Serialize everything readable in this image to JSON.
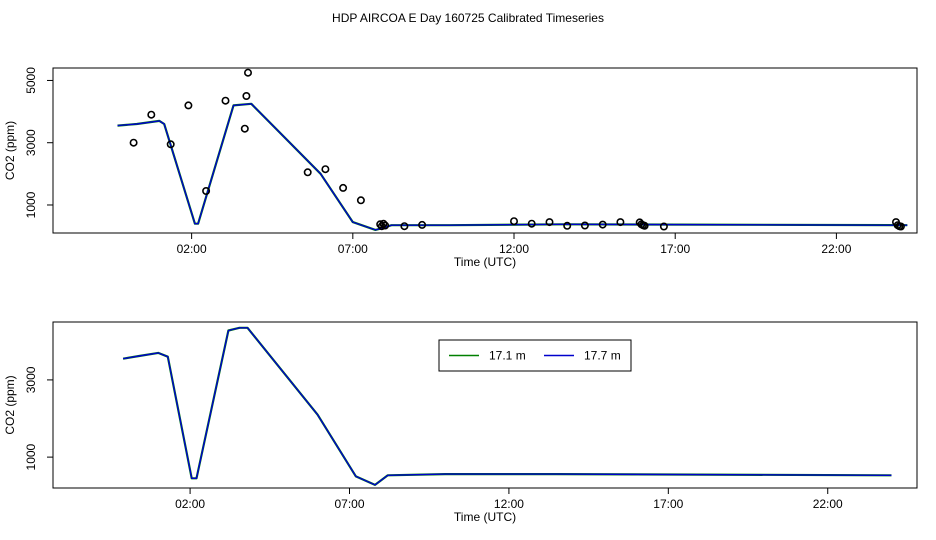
{
  "title": "HDP AIRCOA E  Day 160725  Calibrated Timeseries",
  "chart_data": [
    {
      "type": "line",
      "xlabel": "Time (UTC)",
      "ylabel": "CO2 (ppm)",
      "xlim": [
        -2.3,
        24.5
      ],
      "ylim": [
        100,
        5400
      ],
      "xticks": [
        2,
        7,
        12,
        17,
        22
      ],
      "xtick_labels": [
        "02:00",
        "07:00",
        "12:00",
        "17:00",
        "22:00"
      ],
      "yticks": [
        1000,
        3000,
        5000
      ],
      "ytick_labels": [
        "1000",
        "3000",
        "5000"
      ],
      "grid": false,
      "series": [
        {
          "color": "#008000",
          "x": [
            -0.3,
            0.3,
            1.0,
            1.15,
            2.1,
            2.2,
            3.3,
            3.85,
            6.0,
            7.0,
            7.7,
            7.9,
            8.2,
            10.0,
            13.5,
            24.2
          ],
          "y": [
            3550,
            3600,
            3700,
            3600,
            400,
            400,
            4200,
            4250,
            2000,
            450,
            200,
            250,
            350,
            350,
            380,
            350
          ]
        },
        {
          "color": "#0000cc",
          "x": [
            -0.3,
            0.3,
            1.0,
            1.15,
            2.1,
            2.2,
            3.3,
            3.85,
            6.0,
            7.0,
            7.7,
            7.9,
            8.2,
            10.0,
            13.5,
            24.2
          ],
          "y": [
            3550,
            3600,
            3700,
            3600,
            400,
            400,
            4200,
            4250,
            2000,
            450,
            200,
            250,
            350,
            350,
            380,
            350
          ]
        }
      ],
      "points": {
        "x": [
          0.2,
          0.75,
          1.35,
          1.9,
          2.45,
          3.05,
          3.65,
          3.7,
          3.75,
          5.6,
          6.15,
          6.7,
          7.25,
          7.85,
          7.9,
          7.95,
          8.0,
          8.6,
          9.15,
          12.0,
          12.55,
          13.1,
          13.65,
          14.2,
          14.75,
          15.3,
          15.9,
          15.95,
          16.0,
          16.05,
          16.65,
          23.85,
          23.9,
          23.95,
          24.0
        ],
        "y": [
          3000,
          3900,
          2950,
          4200,
          1450,
          4350,
          3450,
          4500,
          5250,
          2050,
          2150,
          1550,
          1150,
          380,
          320,
          400,
          340,
          320,
          360,
          480,
          400,
          450,
          330,
          340,
          370,
          450,
          440,
          380,
          350,
          330,
          310,
          450,
          350,
          320,
          310
        ]
      }
    },
    {
      "type": "line",
      "xlabel": "Time (UTC)",
      "ylabel": "CO2 (ppm)",
      "xlim": [
        -2.3,
        24.8
      ],
      "ylim": [
        200,
        4500
      ],
      "xticks": [
        2,
        7,
        12,
        17,
        22
      ],
      "xtick_labels": [
        "02:00",
        "07:00",
        "12:00",
        "17:00",
        "22:00"
      ],
      "yticks": [
        1000,
        3000
      ],
      "ytick_labels": [
        "1000",
        "3000"
      ],
      "grid": false,
      "legend": {
        "position": "top-center",
        "entries": [
          {
            "label": "17.1 m",
            "color": "#008000"
          },
          {
            "label": "17.7 m",
            "color": "#0000cc"
          }
        ]
      },
      "series": [
        {
          "name": "17.1 m",
          "color": "#008000",
          "x": [
            -0.1,
            0.4,
            1.0,
            1.3,
            2.05,
            2.2,
            3.2,
            3.55,
            3.8,
            6.0,
            7.2,
            7.8,
            8.2,
            10.0,
            13.5,
            24.0
          ],
          "y": [
            3550,
            3620,
            3700,
            3600,
            450,
            450,
            4280,
            4350,
            4350,
            2100,
            500,
            280,
            530,
            560,
            560,
            530
          ]
        },
        {
          "name": "17.7 m",
          "color": "#0000cc",
          "x": [
            -0.1,
            0.4,
            1.0,
            1.3,
            2.05,
            2.2,
            3.2,
            3.55,
            3.8,
            6.0,
            7.2,
            7.8,
            8.2,
            10.0,
            13.5,
            24.0
          ],
          "y": [
            3550,
            3620,
            3700,
            3600,
            450,
            450,
            4280,
            4350,
            4350,
            2100,
            500,
            280,
            530,
            560,
            560,
            530
          ]
        }
      ]
    }
  ]
}
